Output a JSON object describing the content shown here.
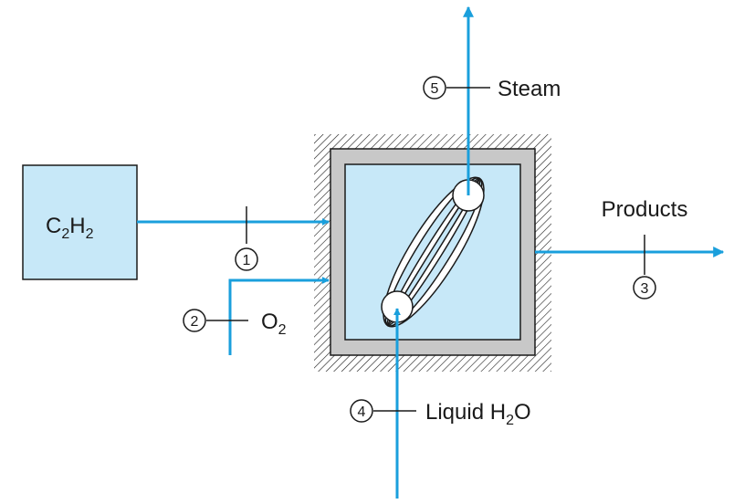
{
  "feed": {
    "formula_main": "C",
    "formula_sub1": "2",
    "formula_mid": "H",
    "formula_sub2": "2"
  },
  "streams": {
    "s1": {
      "number": "1"
    },
    "s2": {
      "number": "2",
      "label_main": "O",
      "label_sub": "2"
    },
    "s3": {
      "number": "3",
      "label": "Products"
    },
    "s4": {
      "number": "4",
      "label_main": "Liquid H",
      "label_sub": "2",
      "label_tail": "O"
    },
    "s5": {
      "number": "5",
      "label": "Steam"
    }
  },
  "colors": {
    "stream": "#1a9fdc",
    "fill_light_blue": "#c7e8f8",
    "wall_gray": "#c8c8c8",
    "outline": "#1a1a1a"
  }
}
